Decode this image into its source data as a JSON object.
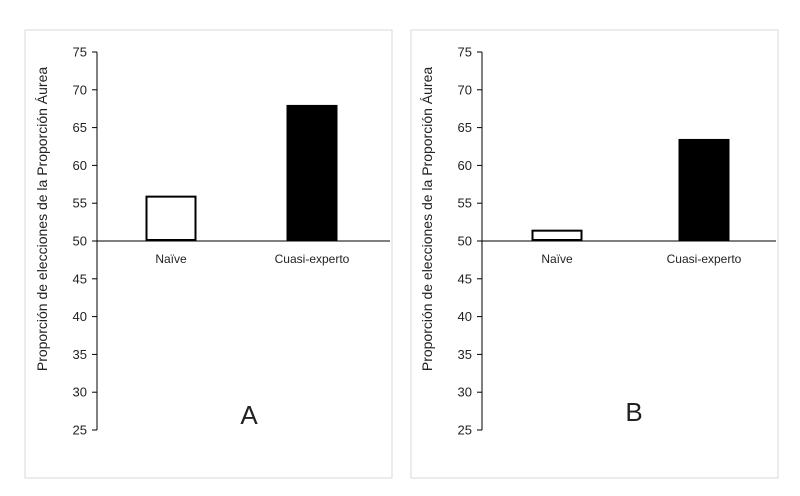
{
  "chart_data": [
    {
      "type": "bar",
      "panel_label": "A",
      "ylabel": "Proporción de elecciones de la Proporción Áurea",
      "ylim": [
        25,
        75
      ],
      "yticks": [
        25,
        30,
        35,
        40,
        45,
        50,
        55,
        60,
        65,
        70,
        75
      ],
      "baseline": 50,
      "categories": [
        "Naïve",
        "Cuasi-experto"
      ],
      "values": [
        56,
        68
      ],
      "bar_colors": [
        "#ffffff",
        "#000000"
      ]
    },
    {
      "type": "bar",
      "panel_label": "B",
      "ylabel": "Proporción de elecciones de la Proporción Áurea",
      "ylim": [
        25,
        75
      ],
      "yticks": [
        25,
        30,
        35,
        40,
        45,
        50,
        55,
        60,
        65,
        70,
        75
      ],
      "baseline": 50,
      "categories": [
        "Naïve",
        "Cuasi-experto"
      ],
      "values": [
        51.5,
        63.5
      ],
      "bar_colors": [
        "#ffffff",
        "#000000"
      ]
    }
  ]
}
